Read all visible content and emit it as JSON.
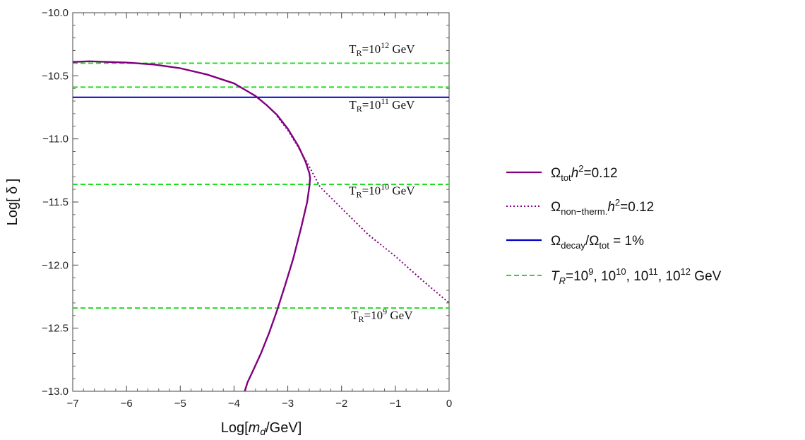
{
  "chart_data": {
    "type": "line",
    "xlabel": "Log[m_d/GeV]",
    "ylabel": "Log[ δ ]",
    "xlim": [
      -7,
      0
    ],
    "ylim": [
      -13,
      -10
    ],
    "x_ticks": [
      -7,
      -6,
      -5,
      -4,
      -3,
      -2,
      -1,
      0
    ],
    "x_tick_labels": [
      "−7",
      "−6",
      "−5",
      "−4",
      "−3",
      "−2",
      "−1",
      "0"
    ],
    "y_ticks": [
      -10,
      -10.5,
      -11,
      -11.5,
      -12,
      -12.5,
      -13
    ],
    "y_tick_labels": [
      "−10.0",
      "−10.5",
      "−11.0",
      "−11.5",
      "−12.0",
      "−12.5",
      "−13.0"
    ],
    "grid": false,
    "legend_position": "right",
    "series": [
      {
        "name": "Ω_tot h²=0.12",
        "color": "#800080",
        "dash": "solid",
        "points": [
          [
            -7.0,
            -10.39
          ],
          [
            -6.7,
            -10.385
          ],
          [
            -6.0,
            -10.395
          ],
          [
            -5.5,
            -10.41
          ],
          [
            -5.0,
            -10.44
          ],
          [
            -4.5,
            -10.49
          ],
          [
            -4.0,
            -10.56
          ],
          [
            -3.8,
            -10.61
          ],
          [
            -3.6,
            -10.66
          ],
          [
            -3.4,
            -10.73
          ],
          [
            -3.2,
            -10.81
          ],
          [
            -3.0,
            -10.92
          ],
          [
            -2.8,
            -11.06
          ],
          [
            -2.67,
            -11.18
          ],
          [
            -2.6,
            -11.27
          ],
          [
            -2.585,
            -11.31
          ],
          [
            -2.6,
            -11.38
          ],
          [
            -2.64,
            -11.5
          ],
          [
            -2.75,
            -11.7
          ],
          [
            -2.9,
            -11.95
          ],
          [
            -3.05,
            -12.16
          ],
          [
            -3.2,
            -12.36
          ],
          [
            -3.35,
            -12.54
          ],
          [
            -3.5,
            -12.7
          ],
          [
            -3.65,
            -12.84
          ],
          [
            -3.75,
            -12.93
          ],
          [
            -3.8,
            -13.0
          ]
        ]
      },
      {
        "name": "Ω_non-therm. h²=0.12",
        "color": "#800080",
        "dash": "dotted",
        "points": [
          [
            -3.2,
            -10.82
          ],
          [
            -3.0,
            -10.93
          ],
          [
            -2.8,
            -11.07
          ],
          [
            -2.6,
            -11.22
          ],
          [
            -2.4,
            -11.38
          ],
          [
            -2.0,
            -11.55
          ],
          [
            -1.5,
            -11.76
          ],
          [
            -1.0,
            -11.93
          ],
          [
            -0.5,
            -12.12
          ],
          [
            0.0,
            -12.3
          ]
        ]
      },
      {
        "name": "Ω_decay/Ω_tot = 1%",
        "color": "#0000cc",
        "dash": "solid",
        "hline": -10.67
      },
      {
        "name": "T_R=10⁹, 10¹⁰, 10¹¹, 10¹² GeV",
        "color": "#22dd22",
        "dash": "dashed",
        "hlines": [
          -10.4,
          -10.59,
          -11.36,
          -12.34
        ]
      }
    ],
    "annotations": [
      {
        "text": "T_R=10^12 GeV",
        "x": -1.25,
        "y": -10.32
      },
      {
        "text": "T_R=10^11 GeV",
        "x": -1.25,
        "y": -10.76
      },
      {
        "text": "T_R=10^10 GeV",
        "x": -1.25,
        "y": -11.44
      },
      {
        "text": "T_R=10^9 GeV",
        "x": -1.25,
        "y": -12.43
      }
    ]
  },
  "annotation_text": {
    "tr12_base": "T",
    "tr12_sub": "R",
    "tr12_mid": "=10",
    "tr12_sup": "12",
    "tr12_end": " GeV",
    "tr11_base": "T",
    "tr11_sub": "R",
    "tr11_mid": "=10",
    "tr11_sup": "11",
    "tr11_end": " GeV",
    "tr10_base": "T",
    "tr10_sub": "R",
    "tr10_mid": "=10",
    "tr10_sup": "10",
    "tr10_end": " GeV",
    "tr9_base": "T",
    "tr9_sub": "R",
    "tr9_mid": "=10",
    "tr9_sup": "9",
    "tr9_end": " GeV"
  },
  "axis_text": {
    "x_pre": "Log[",
    "x_var": "m",
    "x_sub": "d",
    "x_post": "/GeV]",
    "y_text": "Log[ δ ]"
  },
  "legend_text": {
    "tot_omega": "Ω",
    "tot_sub": "tot",
    "tot_h": "h",
    "tot_sup": "2",
    "tot_rest": "=0.12",
    "nt_omega": "Ω",
    "nt_sub": "non−therm.",
    "nt_h": "h",
    "nt_sup": "2",
    "nt_rest": "=0.12",
    "decay_omega": "Ω",
    "decay_sub": "decay",
    "decay_slash": "/Ω",
    "decay_sub2": "tot",
    "decay_rest": " = 1%",
    "tr_T": "T",
    "tr_sub": "R",
    "tr_a": "=10",
    "tr_sup1": "9",
    "tr_b": ", 10",
    "tr_sup2": "10",
    "tr_c": ", 10",
    "tr_sup3": "11",
    "tr_d": ", 10",
    "tr_sup4": "12",
    "tr_e": " GeV"
  }
}
